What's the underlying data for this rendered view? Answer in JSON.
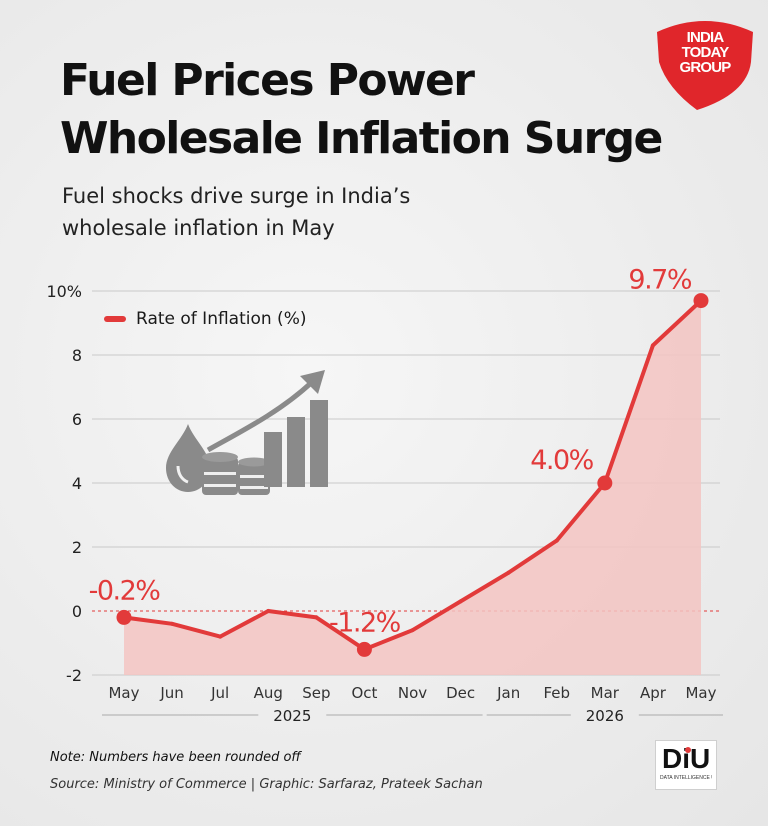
{
  "brand": {
    "logo_lines": [
      "INDIA",
      "TODAY",
      "GROUP"
    ],
    "diu_mark": "DiU",
    "diu_caption": "DATA INTELLIGENCE UNIT"
  },
  "title_lines": [
    "Fuel Prices Power",
    "Wholesale Inflation Surge"
  ],
  "subtitle_lines": [
    "Fuel shocks drive surge in India’s",
    "wholesale inflation in May"
  ],
  "note": "Note: Numbers have been rounded off",
  "source": "Source: Ministry of Commerce | Graphic: Sarfaraz, Prateek Sachan",
  "colors": {
    "accent": "#e23a3a",
    "area_fill": "#f3c4c2",
    "icon_gray": "#8a8a8a"
  },
  "icons": [
    "fuel-drop-barrels-rising-bars-icon"
  ],
  "chart_data": {
    "type": "line",
    "title": "Fuel Prices Power Wholesale Inflation Surge",
    "subtitle": "Fuel shocks drive surge in India’s wholesale inflation in May",
    "categories": [
      "May",
      "Jun",
      "Jul",
      "Aug",
      "Sep",
      "Oct",
      "Nov",
      "Dec",
      "Jan",
      "Feb",
      "Mar",
      "Apr",
      "May"
    ],
    "year_groups": [
      {
        "label": "2025",
        "from": "May",
        "to": "Dec"
      },
      {
        "label": "2026",
        "from": "Jan",
        "to": "May"
      }
    ],
    "series": [
      {
        "name": "Rate of Inflation (%)",
        "values": [
          -0.2,
          -0.4,
          -0.8,
          0.0,
          -0.2,
          -1.2,
          -0.6,
          0.3,
          1.2,
          2.2,
          4.0,
          8.3,
          9.7
        ]
      }
    ],
    "annotations": [
      {
        "index": 0,
        "label": "-0.2%"
      },
      {
        "index": 5,
        "label": "-1.2%"
      },
      {
        "index": 10,
        "label": "4.0%"
      },
      {
        "index": 12,
        "label": "9.7%"
      }
    ],
    "y_ticks": [
      {
        "value": 10,
        "label": "10%"
      },
      {
        "value": 8,
        "label": "8"
      },
      {
        "value": 6,
        "label": "6"
      },
      {
        "value": 4,
        "label": "4"
      },
      {
        "value": 2,
        "label": "2"
      },
      {
        "value": 0,
        "label": "0"
      },
      {
        "value": -2,
        "label": "-2"
      }
    ],
    "ylim": [
      -2,
      10
    ],
    "grid": true,
    "zero_line": "dashed",
    "legend": "top-left"
  }
}
